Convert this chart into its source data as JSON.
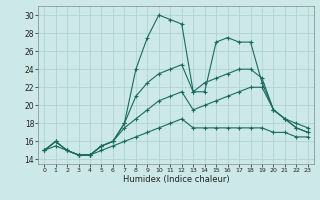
{
  "xlabel": "Humidex (Indice chaleur)",
  "bg_color": "#cce8e8",
  "grid_color": "#aacfcf",
  "line_color": "#1a6b5e",
  "xlim": [
    -0.5,
    23.5
  ],
  "ylim": [
    13.5,
    31.0
  ],
  "xticks": [
    0,
    1,
    2,
    3,
    4,
    5,
    6,
    7,
    8,
    9,
    10,
    11,
    12,
    13,
    14,
    15,
    16,
    17,
    18,
    19,
    20,
    21,
    22,
    23
  ],
  "yticks": [
    14,
    16,
    18,
    20,
    22,
    24,
    26,
    28,
    30
  ],
  "line1_x": [
    0,
    1,
    2,
    3,
    4,
    5,
    6,
    7,
    8,
    9,
    10,
    11,
    12,
    13,
    14,
    15,
    16,
    17,
    18,
    19,
    20,
    21,
    22,
    23
  ],
  "line1_y": [
    15.0,
    16.0,
    15.0,
    14.5,
    14.5,
    15.5,
    16.0,
    18.0,
    24.0,
    27.5,
    30.0,
    29.5,
    29.0,
    21.5,
    21.5,
    27.0,
    27.5,
    27.0,
    27.0,
    22.5,
    19.5,
    18.5,
    17.5,
    17.0
  ],
  "line2_x": [
    0,
    1,
    2,
    3,
    4,
    5,
    6,
    7,
    8,
    9,
    10,
    11,
    12,
    13,
    14,
    15,
    16,
    17,
    18,
    19,
    20,
    21,
    22,
    23
  ],
  "line2_y": [
    15.0,
    16.0,
    15.0,
    14.5,
    14.5,
    15.5,
    16.0,
    18.0,
    21.0,
    22.5,
    23.5,
    24.0,
    24.5,
    21.5,
    22.5,
    23.0,
    23.5,
    24.0,
    24.0,
    23.0,
    19.5,
    18.5,
    17.5,
    17.0
  ],
  "line3_x": [
    0,
    1,
    2,
    3,
    4,
    5,
    6,
    7,
    8,
    9,
    10,
    11,
    12,
    13,
    14,
    15,
    16,
    17,
    18,
    19,
    20,
    21,
    22,
    23
  ],
  "line3_y": [
    15.0,
    16.0,
    15.0,
    14.5,
    14.5,
    15.5,
    16.0,
    17.5,
    18.5,
    19.5,
    20.5,
    21.0,
    21.5,
    19.5,
    20.0,
    20.5,
    21.0,
    21.5,
    22.0,
    22.0,
    19.5,
    18.5,
    18.0,
    17.5
  ],
  "line4_x": [
    0,
    1,
    2,
    3,
    4,
    5,
    6,
    7,
    8,
    9,
    10,
    11,
    12,
    13,
    14,
    15,
    16,
    17,
    18,
    19,
    20,
    21,
    22,
    23
  ],
  "line4_y": [
    15.0,
    15.5,
    15.0,
    14.5,
    14.5,
    15.0,
    15.5,
    16.0,
    16.5,
    17.0,
    17.5,
    18.0,
    18.5,
    17.5,
    17.5,
    17.5,
    17.5,
    17.5,
    17.5,
    17.5,
    17.0,
    17.0,
    16.5,
    16.5
  ]
}
